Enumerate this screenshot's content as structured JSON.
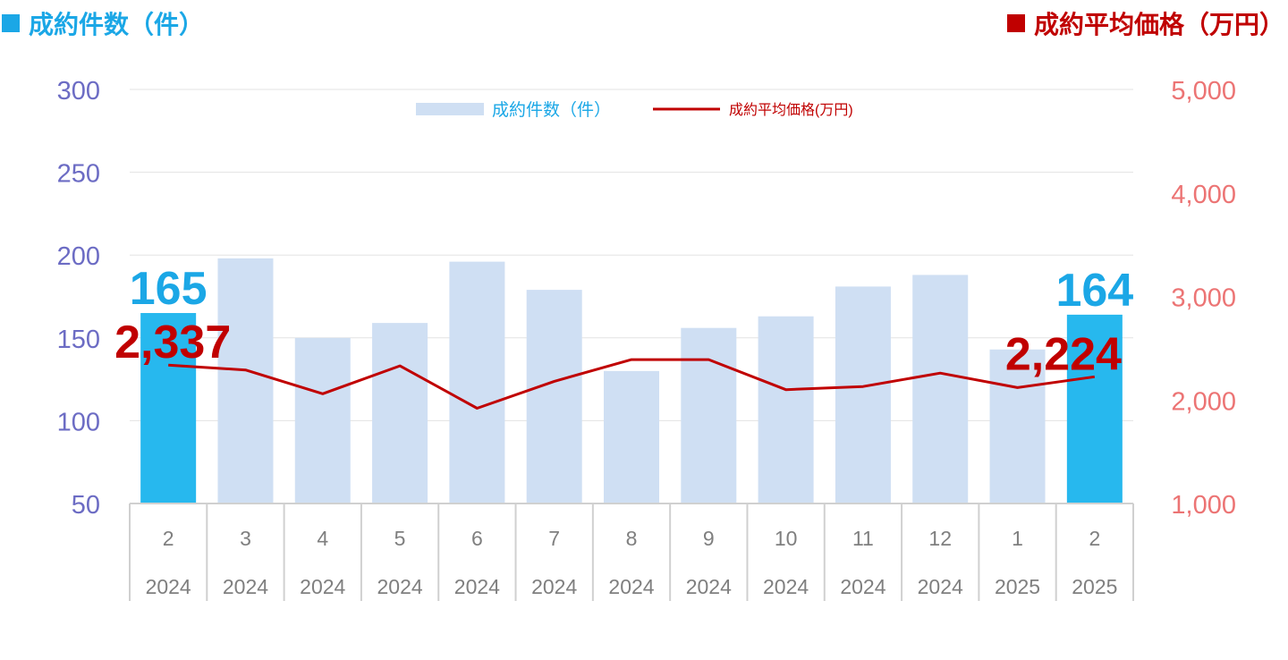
{
  "header": {
    "left_title": "成約件数（件）",
    "right_title": "成約平均価格（万円）"
  },
  "colors": {
    "bar": "#cfdff3",
    "bar_highlight": "#27b8ee",
    "line": "#c00000",
    "left_axis": "#6c6cc4",
    "right_axis": "#ec7474",
    "count_label": "#1ba7e6",
    "price_label": "#c00000",
    "tick_text": "#7f7f7f"
  },
  "chart_data": {
    "type": "bar",
    "title": "",
    "categories": [
      "2\n2024",
      "3\n2024",
      "4\n2024",
      "5\n2024",
      "6\n2024",
      "7\n2024",
      "8\n2024",
      "9\n2024",
      "10\n2024",
      "11\n2024",
      "12\n2024",
      "1\n2025",
      "2\n2025"
    ],
    "months": [
      "2",
      "3",
      "4",
      "5",
      "6",
      "7",
      "8",
      "9",
      "10",
      "11",
      "12",
      "1",
      "2"
    ],
    "years": [
      "2024",
      "2024",
      "2024",
      "2024",
      "2024",
      "2024",
      "2024",
      "2024",
      "2024",
      "2024",
      "2024",
      "2025",
      "2025"
    ],
    "series": [
      {
        "name": "成約件数（件）",
        "type": "bar",
        "axis": "left",
        "values": [
          165,
          198,
          150,
          159,
          196,
          179,
          130,
          156,
          163,
          181,
          188,
          143,
          164
        ],
        "highlight": [
          true,
          false,
          false,
          false,
          false,
          false,
          false,
          false,
          false,
          false,
          false,
          false,
          true
        ]
      },
      {
        "name": "成約平均価格(万円)",
        "type": "line",
        "axis": "right",
        "values": [
          2337,
          2290,
          2060,
          2330,
          1920,
          2180,
          2390,
          2390,
          2100,
          2130,
          2260,
          2120,
          2224
        ]
      }
    ],
    "left_axis": {
      "ylim": [
        50,
        300
      ],
      "ticks": [
        "50",
        "100",
        "150",
        "200",
        "250",
        "300"
      ],
      "tick_values": [
        50,
        100,
        150,
        200,
        250,
        300
      ]
    },
    "right_axis": {
      "ylim": [
        1000,
        5000
      ],
      "ticks": [
        "1,000",
        "2,000",
        "3,000",
        "4,000",
        "5,000"
      ],
      "tick_values": [
        1000,
        2000,
        3000,
        4000,
        5000
      ]
    },
    "data_labels": [
      {
        "series": "count",
        "index": 0,
        "text": "165"
      },
      {
        "series": "count",
        "index": 12,
        "text": "164"
      },
      {
        "series": "price",
        "index": 0,
        "text": "2,337"
      },
      {
        "series": "price",
        "index": 12,
        "text": "2,224"
      }
    ],
    "grid": true,
    "legend": {
      "position": "top-center"
    }
  }
}
